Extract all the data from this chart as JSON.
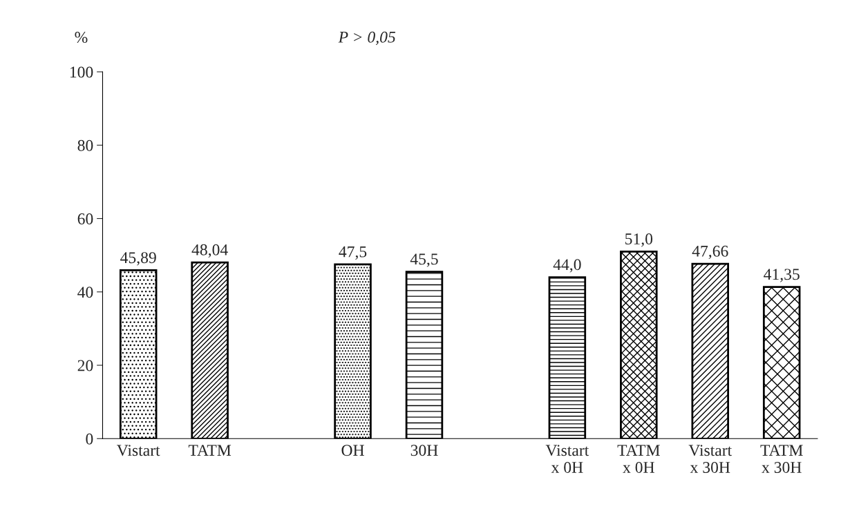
{
  "chart_data": {
    "type": "bar",
    "ylabel": "%",
    "annotations": [
      "P > 0,05"
    ],
    "categories": [
      "Vistart",
      "TATM",
      null,
      "OH",
      "30H",
      null,
      "Vistart\nx 0H",
      "TATM\nx 0H",
      "Vistart\nx 30H",
      "TATM\nx 30H"
    ],
    "values": [
      45.89,
      48.04,
      null,
      47.5,
      45.5,
      null,
      44.0,
      51.0,
      47.66,
      41.35
    ],
    "value_labels": [
      "45,89",
      "48,04",
      null,
      "47,5",
      "45,5",
      null,
      "44,0",
      "51,0",
      "47,66",
      "41,35"
    ],
    "color": "#000000",
    "ylim": [
      0,
      100
    ],
    "yticks": [
      0,
      20,
      40,
      60,
      80,
      100
    ],
    "grid": false
  }
}
